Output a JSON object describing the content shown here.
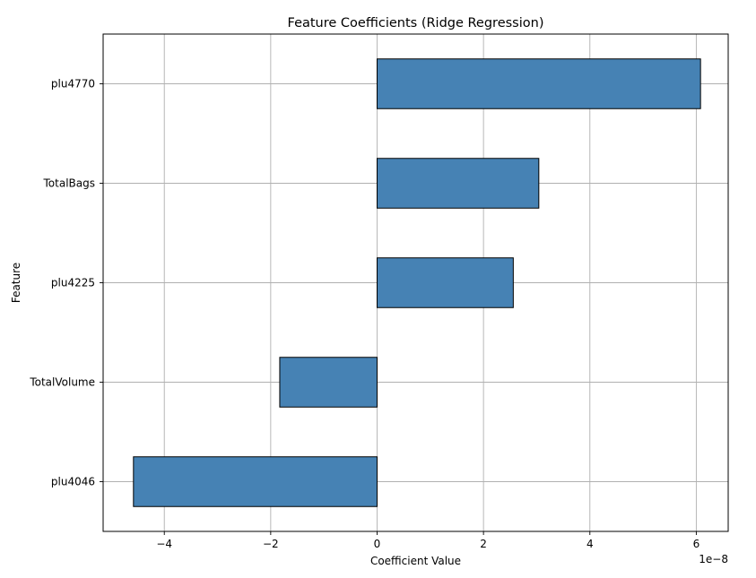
{
  "chart_data": {
    "type": "bar",
    "orientation": "horizontal",
    "title": "Feature Coefficients (Ridge Regression)",
    "xlabel": "Coefficient Value",
    "ylabel": "Feature",
    "x_offset_label": "1e−8",
    "categories": [
      "plu4770",
      "TotalBags",
      "plu4225",
      "TotalVolume",
      "plu4046"
    ],
    "values": [
      6.08,
      3.04,
      2.56,
      -1.83,
      -4.58
    ],
    "xlim": [
      -5.15,
      6.6
    ],
    "x_ticks": [
      -4,
      -2,
      0,
      2,
      4,
      6
    ],
    "x_tick_labels": [
      "−4",
      "−2",
      "0",
      "2",
      "4",
      "6"
    ],
    "grid": true,
    "bar_color": "#4682b4",
    "bar_edge_color": "#000000",
    "grid_color": "#b0b0b0"
  }
}
